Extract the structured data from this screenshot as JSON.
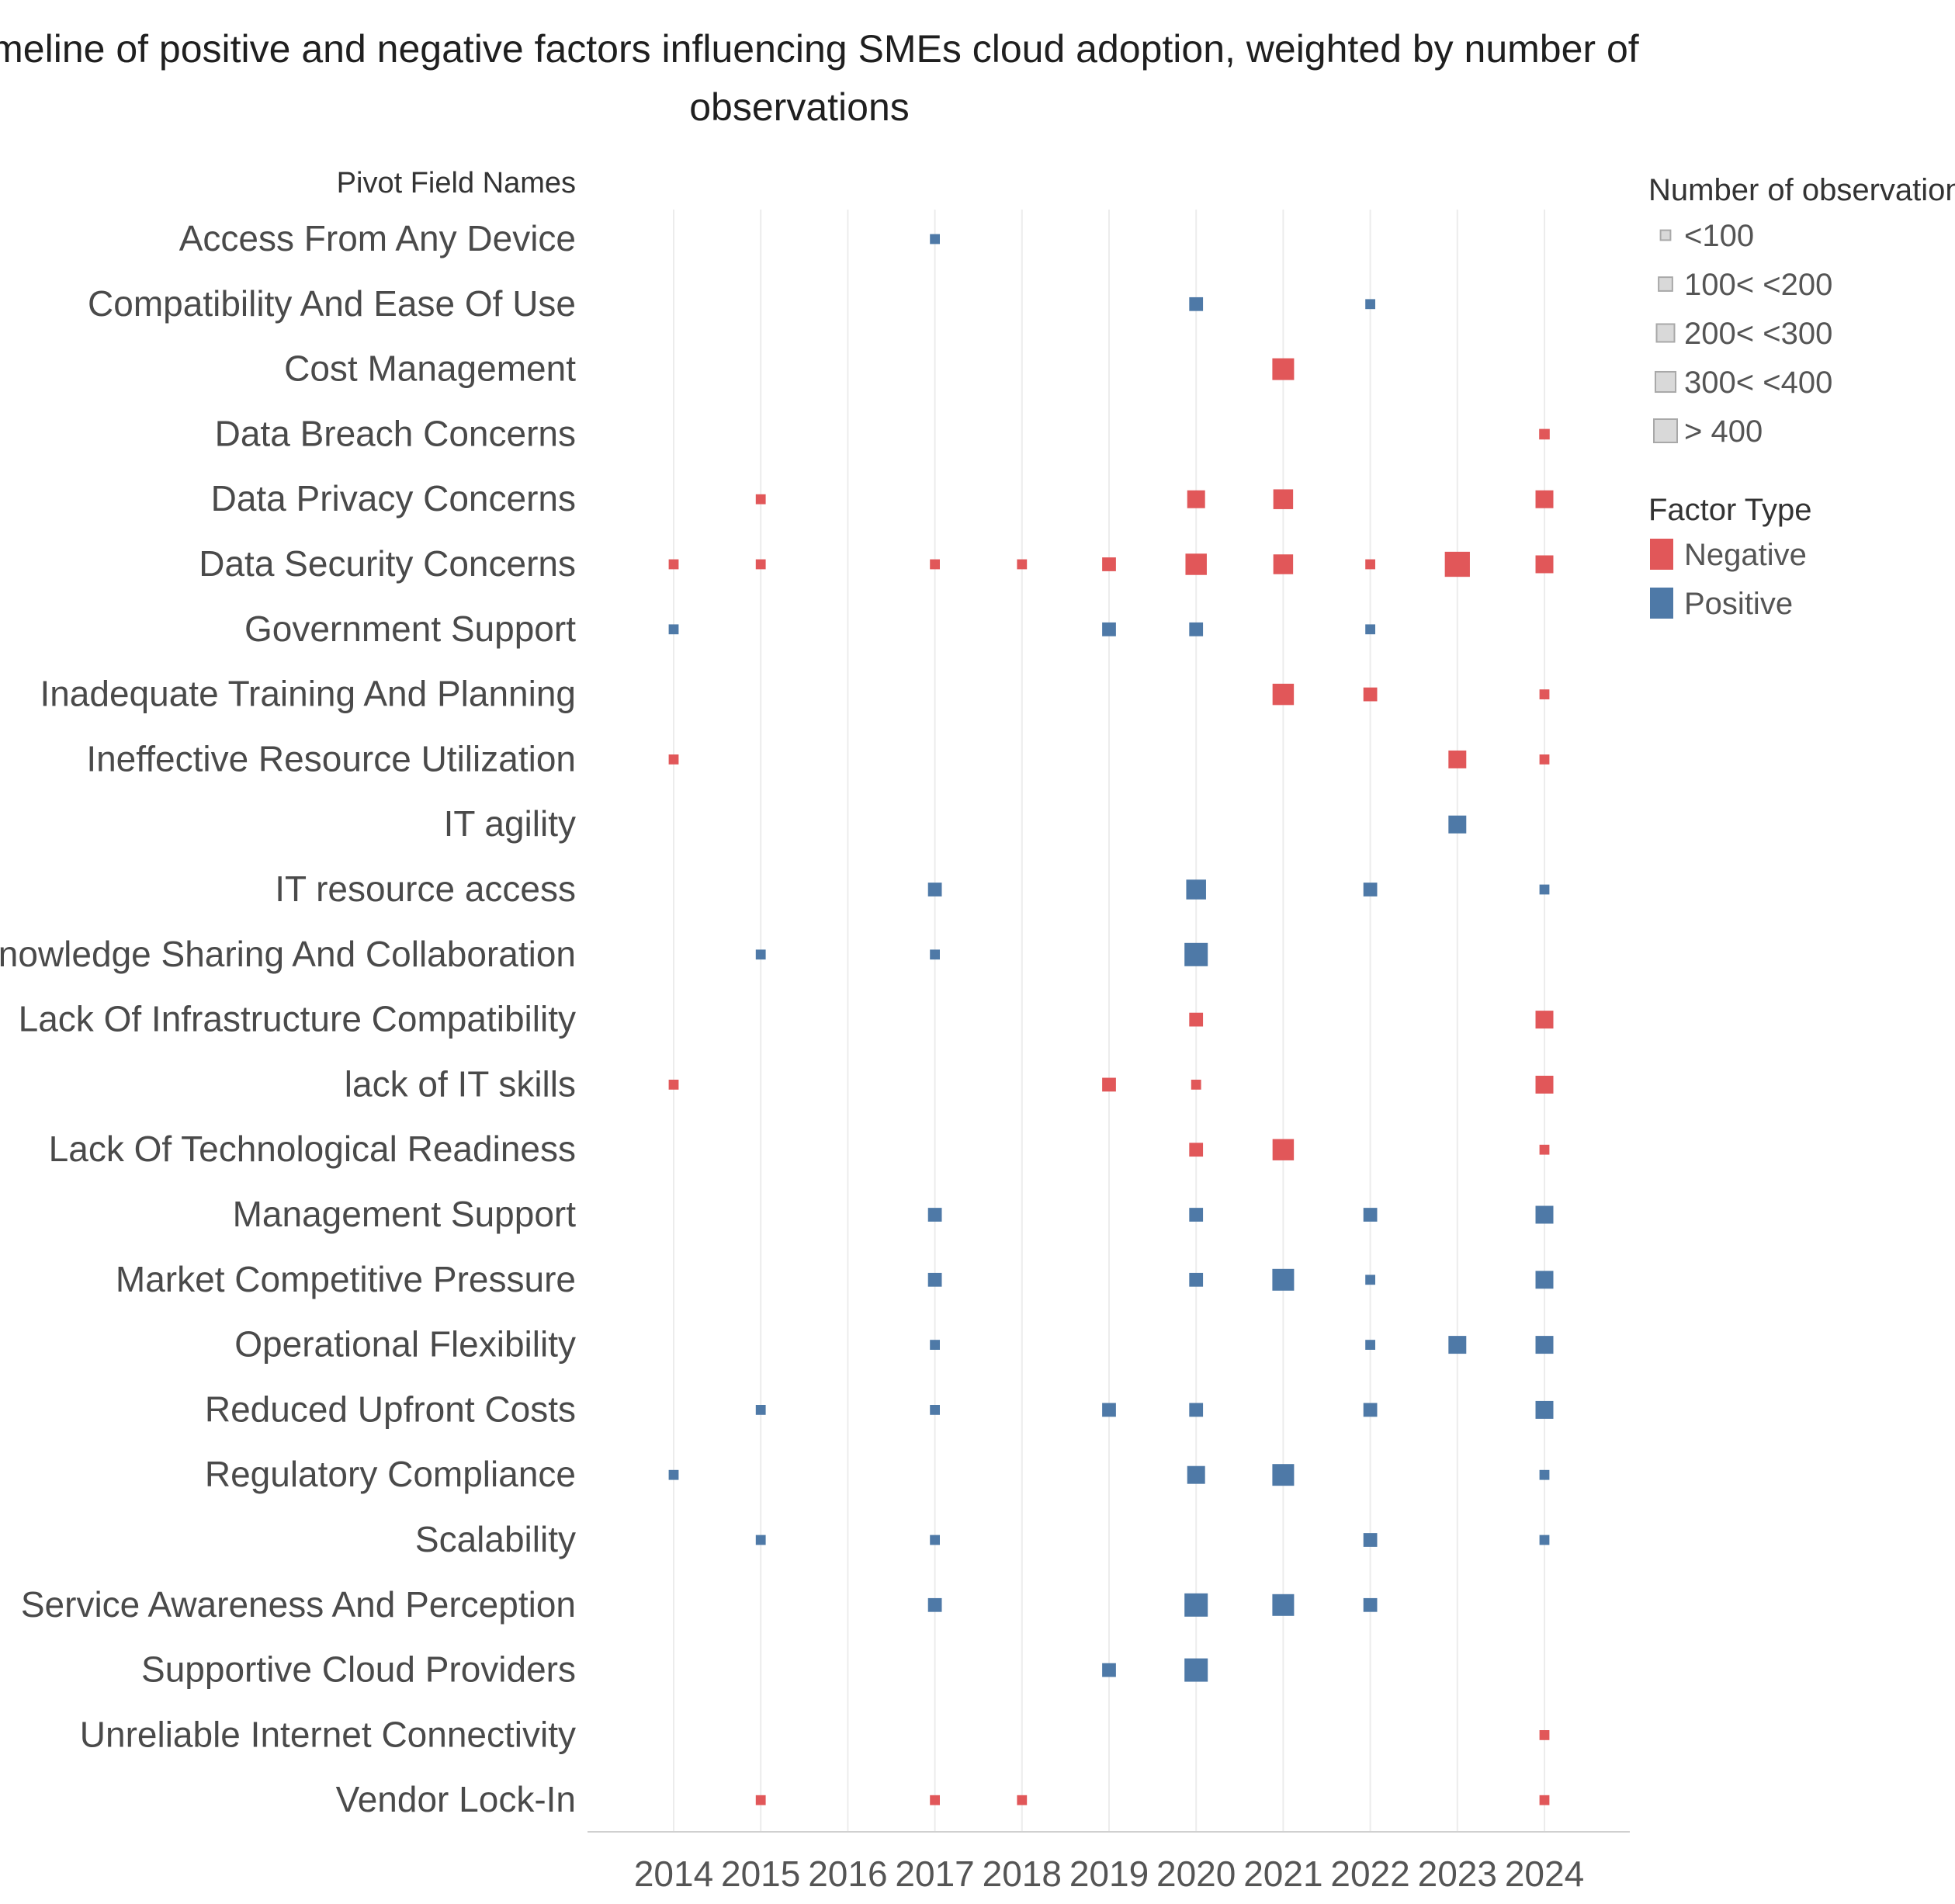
{
  "chart_data": {
    "type": "scatter",
    "title_lines": [
      "Timeline of positive and negative factors influencing SMEs cloud adoption, weighted by number of",
      "observations"
    ],
    "row_header": "Pivot Field Names",
    "years": [
      2014,
      2015,
      2016,
      2017,
      2018,
      2019,
      2020,
      2021,
      2022,
      2023,
      2024
    ],
    "rows": [
      "Access From Any Device",
      "Compatibility And Ease Of Use",
      "Cost Management",
      "Data Breach Concerns",
      "Data Privacy Concerns",
      "Data Security Concerns",
      "Government Support",
      "Inadequate Training And Planning",
      "Ineffective Resource Utilization",
      "IT agility",
      "IT resource access",
      "Knowledge Sharing And Collaboration",
      "Lack Of Infrastructure Compatibility",
      "lack of  IT skills",
      "Lack Of Technological Readiness",
      "Management Support",
      "Market Competitive Pressure",
      "Operational Flexibility",
      "Reduced Upfront Costs",
      "Regulatory Compliance",
      "Scalability",
      "Service Awareness And Perception",
      "Supportive Cloud Providers",
      "Unreliable Internet Connectivity",
      "Vendor Lock-In"
    ],
    "size_unit": "observations (estimated)",
    "points": [
      {
        "factor": "Access From Any Device",
        "year": 2017,
        "type": "Positive",
        "obs": 40
      },
      {
        "factor": "Compatibility And Ease Of Use",
        "year": 2020,
        "type": "Positive",
        "obs": 120
      },
      {
        "factor": "Compatibility And Ease Of Use",
        "year": 2022,
        "type": "Positive",
        "obs": 40
      },
      {
        "factor": "Cost Management",
        "year": 2021,
        "type": "Negative",
        "obs": 420
      },
      {
        "factor": "Data Breach Concerns",
        "year": 2024,
        "type": "Negative",
        "obs": 50
      },
      {
        "factor": "Data Privacy Concerns",
        "year": 2015,
        "type": "Negative",
        "obs": 40
      },
      {
        "factor": "Data Privacy Concerns",
        "year": 2020,
        "type": "Negative",
        "obs": 250
      },
      {
        "factor": "Data Privacy Concerns",
        "year": 2021,
        "type": "Negative",
        "obs": 330
      },
      {
        "factor": "Data Privacy Concerns",
        "year": 2024,
        "type": "Negative",
        "obs": 250
      },
      {
        "factor": "Data Security Concerns",
        "year": 2014,
        "type": "Negative",
        "obs": 40
      },
      {
        "factor": "Data Security Concerns",
        "year": 2015,
        "type": "Negative",
        "obs": 40
      },
      {
        "factor": "Data Security Concerns",
        "year": 2017,
        "type": "Negative",
        "obs": 40
      },
      {
        "factor": "Data Security Concerns",
        "year": 2018,
        "type": "Negative",
        "obs": 40
      },
      {
        "factor": "Data Security Concerns",
        "year": 2019,
        "type": "Negative",
        "obs": 120
      },
      {
        "factor": "Data Security Concerns",
        "year": 2020,
        "type": "Negative",
        "obs": 400
      },
      {
        "factor": "Data Security Concerns",
        "year": 2021,
        "type": "Negative",
        "obs": 330
      },
      {
        "factor": "Data Security Concerns",
        "year": 2022,
        "type": "Negative",
        "obs": 40
      },
      {
        "factor": "Data Security Concerns",
        "year": 2023,
        "type": "Negative",
        "obs": 600
      },
      {
        "factor": "Data Security Concerns",
        "year": 2024,
        "type": "Negative",
        "obs": 250
      },
      {
        "factor": "Government Support",
        "year": 2014,
        "type": "Positive",
        "obs": 40
      },
      {
        "factor": "Government Support",
        "year": 2019,
        "type": "Positive",
        "obs": 120
      },
      {
        "factor": "Government Support",
        "year": 2020,
        "type": "Positive",
        "obs": 120
      },
      {
        "factor": "Government Support",
        "year": 2022,
        "type": "Positive",
        "obs": 40
      },
      {
        "factor": "Inadequate Training And Planning",
        "year": 2021,
        "type": "Negative",
        "obs": 400
      },
      {
        "factor": "Inadequate Training And Planning",
        "year": 2022,
        "type": "Negative",
        "obs": 120
      },
      {
        "factor": "Inadequate Training And Planning",
        "year": 2024,
        "type": "Negative",
        "obs": 40
      },
      {
        "factor": "Ineffective Resource Utilization",
        "year": 2014,
        "type": "Negative",
        "obs": 40
      },
      {
        "factor": "Ineffective Resource Utilization",
        "year": 2023,
        "type": "Negative",
        "obs": 250
      },
      {
        "factor": "Ineffective Resource Utilization",
        "year": 2024,
        "type": "Negative",
        "obs": 40
      },
      {
        "factor": "IT agility",
        "year": 2023,
        "type": "Positive",
        "obs": 250
      },
      {
        "factor": "IT resource access",
        "year": 2017,
        "type": "Positive",
        "obs": 120
      },
      {
        "factor": "IT resource access",
        "year": 2020,
        "type": "Positive",
        "obs": 330
      },
      {
        "factor": "IT resource access",
        "year": 2022,
        "type": "Positive",
        "obs": 120
      },
      {
        "factor": "IT resource access",
        "year": 2024,
        "type": "Positive",
        "obs": 40
      },
      {
        "factor": "Knowledge Sharing And Collaboration",
        "year": 2015,
        "type": "Positive",
        "obs": 40
      },
      {
        "factor": "Knowledge Sharing And Collaboration",
        "year": 2017,
        "type": "Positive",
        "obs": 40
      },
      {
        "factor": "Knowledge Sharing And Collaboration",
        "year": 2020,
        "type": "Positive",
        "obs": 500
      },
      {
        "factor": "Lack Of Infrastructure Compatibility",
        "year": 2020,
        "type": "Negative",
        "obs": 120
      },
      {
        "factor": "Lack Of Infrastructure Compatibility",
        "year": 2024,
        "type": "Negative",
        "obs": 250
      },
      {
        "factor": "lack of  IT skills",
        "year": 2014,
        "type": "Negative",
        "obs": 40
      },
      {
        "factor": "lack of  IT skills",
        "year": 2019,
        "type": "Negative",
        "obs": 120
      },
      {
        "factor": "lack of  IT skills",
        "year": 2020,
        "type": "Negative",
        "obs": 40
      },
      {
        "factor": "lack of  IT skills",
        "year": 2024,
        "type": "Negative",
        "obs": 250
      },
      {
        "factor": "Lack Of Technological Readiness",
        "year": 2020,
        "type": "Negative",
        "obs": 120
      },
      {
        "factor": "Lack Of Technological Readiness",
        "year": 2021,
        "type": "Negative",
        "obs": 400
      },
      {
        "factor": "Lack Of Technological Readiness",
        "year": 2024,
        "type": "Negative",
        "obs": 40
      },
      {
        "factor": "Management Support",
        "year": 2017,
        "type": "Positive",
        "obs": 120
      },
      {
        "factor": "Management Support",
        "year": 2020,
        "type": "Positive",
        "obs": 120
      },
      {
        "factor": "Management Support",
        "year": 2022,
        "type": "Positive",
        "obs": 120
      },
      {
        "factor": "Management Support",
        "year": 2024,
        "type": "Positive",
        "obs": 250
      },
      {
        "factor": "Market Competitive Pressure",
        "year": 2017,
        "type": "Positive",
        "obs": 120
      },
      {
        "factor": "Market Competitive Pressure",
        "year": 2020,
        "type": "Positive",
        "obs": 120
      },
      {
        "factor": "Market Competitive Pressure",
        "year": 2021,
        "type": "Positive",
        "obs": 420
      },
      {
        "factor": "Market Competitive Pressure",
        "year": 2022,
        "type": "Positive",
        "obs": 40
      },
      {
        "factor": "Market Competitive Pressure",
        "year": 2024,
        "type": "Positive",
        "obs": 250
      },
      {
        "factor": "Operational Flexibility",
        "year": 2017,
        "type": "Positive",
        "obs": 40
      },
      {
        "factor": "Operational Flexibility",
        "year": 2022,
        "type": "Positive",
        "obs": 40
      },
      {
        "factor": "Operational Flexibility",
        "year": 2023,
        "type": "Positive",
        "obs": 250
      },
      {
        "factor": "Operational Flexibility",
        "year": 2024,
        "type": "Positive",
        "obs": 250
      },
      {
        "factor": "Reduced Upfront Costs",
        "year": 2015,
        "type": "Positive",
        "obs": 40
      },
      {
        "factor": "Reduced Upfront Costs",
        "year": 2017,
        "type": "Positive",
        "obs": 40
      },
      {
        "factor": "Reduced Upfront Costs",
        "year": 2019,
        "type": "Positive",
        "obs": 120
      },
      {
        "factor": "Reduced Upfront Costs",
        "year": 2020,
        "type": "Positive",
        "obs": 120
      },
      {
        "factor": "Reduced Upfront Costs",
        "year": 2022,
        "type": "Positive",
        "obs": 120
      },
      {
        "factor": "Reduced Upfront Costs",
        "year": 2024,
        "type": "Positive",
        "obs": 250
      },
      {
        "factor": "Regulatory Compliance",
        "year": 2014,
        "type": "Positive",
        "obs": 40
      },
      {
        "factor": "Regulatory Compliance",
        "year": 2020,
        "type": "Positive",
        "obs": 250
      },
      {
        "factor": "Regulatory Compliance",
        "year": 2021,
        "type": "Positive",
        "obs": 420
      },
      {
        "factor": "Regulatory Compliance",
        "year": 2024,
        "type": "Positive",
        "obs": 40
      },
      {
        "factor": "Scalability",
        "year": 2015,
        "type": "Positive",
        "obs": 40
      },
      {
        "factor": "Scalability",
        "year": 2017,
        "type": "Positive",
        "obs": 40
      },
      {
        "factor": "Scalability",
        "year": 2022,
        "type": "Positive",
        "obs": 120
      },
      {
        "factor": "Scalability",
        "year": 2024,
        "type": "Positive",
        "obs": 40
      },
      {
        "factor": "Service Awareness And Perception",
        "year": 2017,
        "type": "Positive",
        "obs": 120
      },
      {
        "factor": "Service Awareness And Perception",
        "year": 2020,
        "type": "Positive",
        "obs": 500
      },
      {
        "factor": "Service Awareness And Perception",
        "year": 2021,
        "type": "Positive",
        "obs": 420
      },
      {
        "factor": "Service Awareness And Perception",
        "year": 2022,
        "type": "Positive",
        "obs": 120
      },
      {
        "factor": "Supportive Cloud Providers",
        "year": 2019,
        "type": "Positive",
        "obs": 120
      },
      {
        "factor": "Supportive Cloud Providers",
        "year": 2020,
        "type": "Positive",
        "obs": 500
      },
      {
        "factor": "Unreliable Internet Connectivity",
        "year": 2024,
        "type": "Negative",
        "obs": 40
      },
      {
        "factor": "Vendor Lock-In",
        "year": 2015,
        "type": "Negative",
        "obs": 40
      },
      {
        "factor": "Vendor Lock-In",
        "year": 2017,
        "type": "Negative",
        "obs": 40
      },
      {
        "factor": "Vendor Lock-In",
        "year": 2018,
        "type": "Negative",
        "obs": 40
      },
      {
        "factor": "Vendor Lock-In",
        "year": 2024,
        "type": "Negative",
        "obs": 40
      }
    ],
    "legend": {
      "size_title": "Number of observations",
      "size_items": [
        {
          "label": "<100",
          "obs": 40
        },
        {
          "label": "100< <200",
          "obs": 120
        },
        {
          "label": "200< <300",
          "obs": 250
        },
        {
          "label": "300< <400",
          "obs": 350
        },
        {
          "label": "> 400",
          "obs": 500
        }
      ],
      "type_title": "Factor Type",
      "type_items": [
        {
          "label": "Negative",
          "color": "#e15759"
        },
        {
          "label": "Positive",
          "color": "#4e79a7"
        }
      ]
    },
    "colors": {
      "Negative": "#e15759",
      "Positive": "#4e79a7",
      "size_swatch_fill": "#d9d9d9",
      "size_swatch_stroke": "#a8a8a8"
    }
  }
}
